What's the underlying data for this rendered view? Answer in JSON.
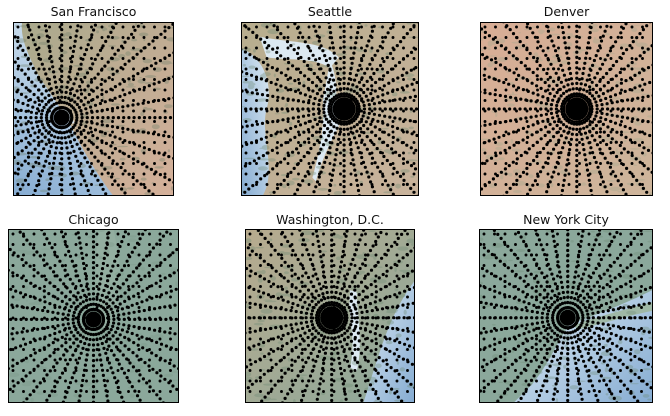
{
  "figure": {
    "panels": [
      {
        "id": "sf",
        "title": "San Francisco",
        "terrain": "coast-west",
        "center": [
          0.3,
          0.55
        ],
        "blob": 1.0
      },
      {
        "id": "seattle",
        "title": "Seattle",
        "terrain": "sound",
        "center": [
          0.58,
          0.5
        ],
        "blob": 1.3
      },
      {
        "id": "denver",
        "title": "Denver",
        "terrain": "plains",
        "center": [
          0.56,
          0.5
        ],
        "blob": 1.3
      },
      {
        "id": "chicago",
        "title": "Chicago",
        "terrain": "lake",
        "center": [
          0.5,
          0.52
        ],
        "blob": 1.0
      },
      {
        "id": "dc",
        "title": "Washington, D.C.",
        "terrain": "bay",
        "center": [
          0.51,
          0.51
        ],
        "blob": 1.3
      },
      {
        "id": "nyc",
        "title": "New York City",
        "terrain": "coast-east",
        "center": [
          0.51,
          0.51
        ],
        "blob": 1.0
      }
    ],
    "colors": {
      "ocean_light": "#dce9f2",
      "ocean_dark": "#86acd2",
      "land_green": "#8ba89b",
      "land_tan": "#c8b59a",
      "land_red": "#d5b09a",
      "lake": "#8fa99c",
      "dots": "#000000"
    }
  }
}
